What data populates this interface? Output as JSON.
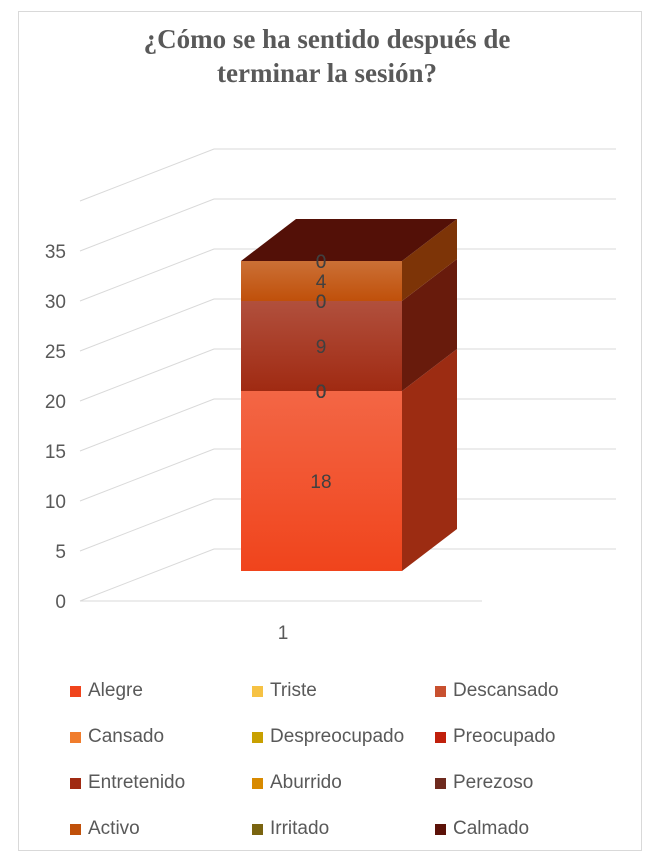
{
  "chart_data": {
    "type": "bar",
    "stacked": true,
    "three_d": true,
    "title": "¿Cómo se ha sentido después de terminar la sesión?",
    "title_lines": [
      "¿Cómo se ha sentido después de",
      "terminar la sesión?"
    ],
    "categories": [
      "1"
    ],
    "ylim": [
      0,
      35
    ],
    "yticks": [
      0,
      5,
      10,
      15,
      20,
      25,
      30,
      35
    ],
    "grid": true,
    "legend_position": "bottom",
    "series": [
      {
        "name": "Alegre",
        "values": [
          18
        ],
        "color": "#f0441c"
      },
      {
        "name": "Triste",
        "values": [
          0
        ],
        "color": "#f6c244"
      },
      {
        "name": "Descansado",
        "values": [
          0
        ],
        "color": "#c8502f"
      },
      {
        "name": "Cansado",
        "values": [
          0
        ],
        "color": "#f07c2c"
      },
      {
        "name": "Despreocupado",
        "values": [
          0
        ],
        "color": "#c8a000"
      },
      {
        "name": "Preocupado",
        "values": [
          0
        ],
        "color": "#c0200c"
      },
      {
        "name": "Entretenido",
        "values": [
          9
        ],
        "color": "#a02a12"
      },
      {
        "name": "Aburrido",
        "values": [
          0
        ],
        "color": "#d88a00"
      },
      {
        "name": "Perezoso",
        "values": [
          0
        ],
        "color": "#6e2a1e"
      },
      {
        "name": "Activo",
        "values": [
          4
        ],
        "color": "#c0500a"
      },
      {
        "name": "Irritado",
        "values": [
          0
        ],
        "color": "#7a6410"
      },
      {
        "name": "Calmado",
        "values": [
          0
        ],
        "color": "#5c1208"
      }
    ]
  }
}
